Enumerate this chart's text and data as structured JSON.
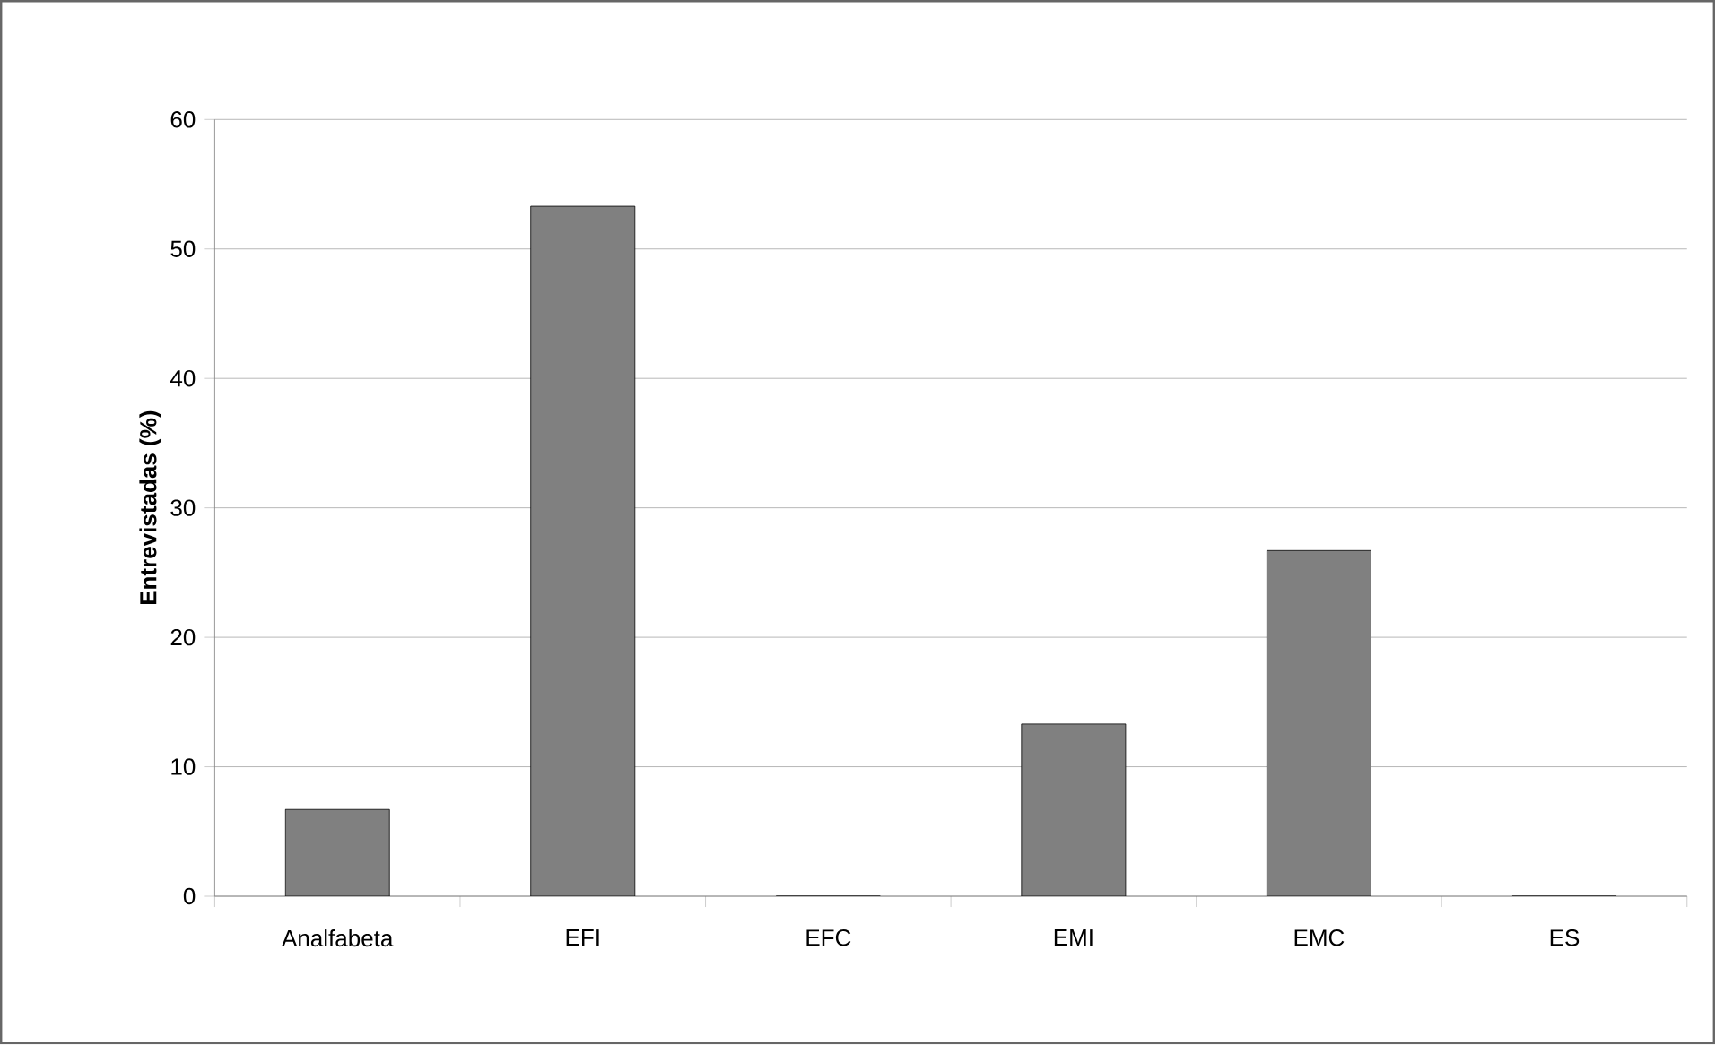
{
  "chart_data": {
    "type": "bar",
    "ylabel": "**Entrevistadas (%)**",
    "categories": [
      "Analfabeta",
      "EFI",
      "EFC",
      "EMI",
      "EMC",
      "ES"
    ],
    "values": [
      6.7,
      53.3,
      0,
      13.3,
      26.7,
      0
    ],
    "color": "#808080",
    "ylim": [
      0,
      60
    ],
    "yticks": [
      0,
      10,
      20,
      30,
      40,
      50,
      60
    ],
    "grid": "y"
  }
}
